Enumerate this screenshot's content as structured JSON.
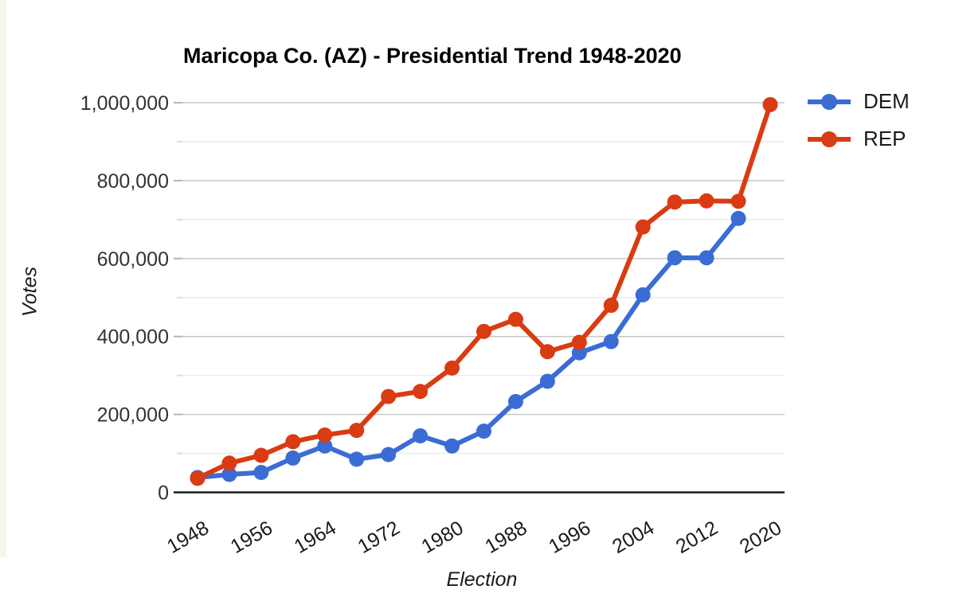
{
  "chart_data": {
    "type": "line",
    "title": "Maricopa Co. (AZ) - Presidential Trend 1948-2020",
    "xlabel": "Election",
    "ylabel": "Votes",
    "x": [
      1948,
      1952,
      1956,
      1960,
      1964,
      1968,
      1972,
      1976,
      1980,
      1984,
      1988,
      1992,
      1996,
      2000,
      2004,
      2008,
      2012,
      2016,
      2020
    ],
    "x_tick_labels": [
      "1948",
      "1956",
      "1964",
      "1972",
      "1980",
      "1988",
      "1996",
      "2004",
      "2012",
      "2020"
    ],
    "series": [
      {
        "name": "DEM",
        "color": "#3b6cd4",
        "values": [
          38000,
          46000,
          51000,
          88000,
          119000,
          85000,
          97000,
          145000,
          119000,
          157000,
          233000,
          285000,
          358000,
          387000,
          507000,
          602000,
          602000,
          703000,
          null
        ]
      },
      {
        "name": "REP",
        "color": "#d93b12",
        "values": [
          36000,
          75000,
          95000,
          130000,
          147000,
          159000,
          246000,
          259000,
          319000,
          413000,
          444000,
          361000,
          385000,
          480000,
          681000,
          745000,
          748000,
          747000,
          995000
        ]
      }
    ],
    "ylim": [
      0,
      1000000
    ],
    "y_major_step": 200000,
    "y_minor_step": 100000,
    "y_tick_labels": [
      "0",
      "200,000",
      "400,000",
      "600,000",
      "800,000",
      "1,000,000"
    ],
    "grid": true,
    "legend_position": "top-right",
    "style": {
      "axis_color": "#1a1a1a",
      "major_gridline_color": "#c9c9c9",
      "minor_gridline_color": "#ebebeb",
      "tick_label_color": "#333333",
      "background": "#ffffff"
    }
  }
}
